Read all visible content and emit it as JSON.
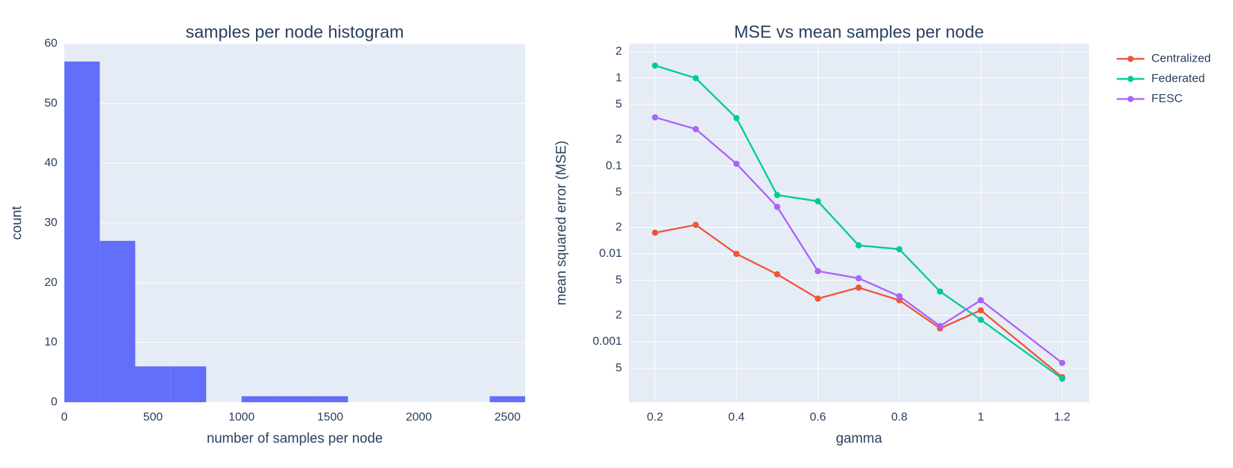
{
  "chart_data": [
    {
      "type": "histogram",
      "title": "samples per node histogram",
      "x_label": "number of samples per node",
      "y_label": "count",
      "bins": [
        0,
        200,
        400,
        600,
        800,
        1000,
        1200,
        1400,
        1600,
        1800,
        2000,
        2200,
        2400,
        2600
      ],
      "counts": [
        57,
        27,
        6,
        6,
        0,
        1,
        1,
        1,
        0,
        0,
        0,
        0,
        1
      ],
      "color": "#636efa",
      "xlim": [
        0,
        2600
      ],
      "xticks": [
        0,
        500,
        1000,
        1500,
        2000,
        2500
      ],
      "ylim": [
        0,
        60
      ],
      "yticks": [
        0,
        10,
        20,
        30,
        40,
        50,
        60
      ],
      "grid": "y"
    },
    {
      "type": "line",
      "title": "MSE vs mean samples per node",
      "x_label": "gamma",
      "y_label": "mean squared error (MSE)",
      "x": [
        0.2,
        0.3,
        0.4,
        0.5,
        0.6,
        0.7,
        0.8,
        0.9,
        1,
        1.2
      ],
      "series": [
        {
          "name": "Centralized",
          "color": "#ef553b",
          "values": [
            0.0174,
            0.0214,
            0.01,
            0.00586,
            0.0031,
            0.00413,
            0.00297,
            0.00142,
            0.00228,
            0.000396
          ]
        },
        {
          "name": "Federated",
          "color": "#00cc96",
          "values": [
            1.39,
            1.0,
            0.351,
            0.0467,
            0.0397,
            0.0125,
            0.0113,
            0.00373,
            0.00178,
            0.00038
          ]
        },
        {
          "name": "FESC",
          "color": "#ab63fa",
          "values": [
            0.358,
            0.263,
            0.106,
            0.0343,
            0.00636,
            0.00528,
            0.0033,
            0.00151,
            0.00297,
            0.000574
          ]
        }
      ],
      "xlim": [
        0.136,
        1.266
      ],
      "xticks": [
        0.2,
        0.4,
        0.6,
        0.8,
        1,
        1.2
      ],
      "ylim": [
        0.000205,
        2.47
      ],
      "ylog": true,
      "yticks": [
        {
          "value": 0.0005,
          "label": "5"
        },
        0.001,
        {
          "value": 0.002,
          "label": "2"
        },
        {
          "value": 0.005,
          "label": "5"
        },
        0.01,
        {
          "value": 0.02,
          "label": "2"
        },
        {
          "value": 0.05,
          "label": "5"
        },
        0.1,
        {
          "value": 0.2,
          "label": "2"
        },
        {
          "value": 0.5,
          "label": "5"
        },
        1,
        2
      ],
      "grid": "both",
      "legend": "right"
    }
  ]
}
